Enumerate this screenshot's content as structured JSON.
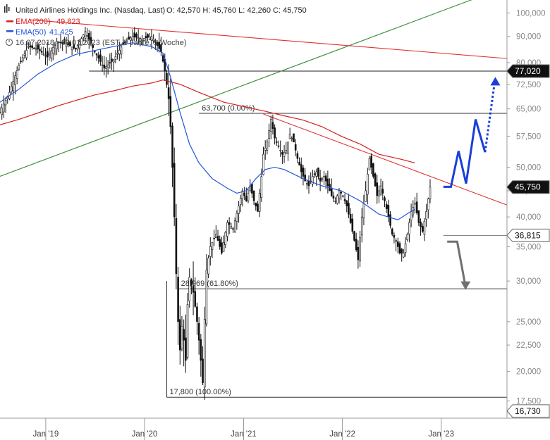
{
  "header": {
    "title": "United Airlines Holdings Inc. (Nasdaq, Last)",
    "ohlc": "O: 42,570  H: 45,760  L: 42,260  C: 45,750",
    "ema200_label": "EMA(200)",
    "ema200_value": "49,823",
    "ema50_label": "EMA(50)",
    "ema50_value": "41,425",
    "range_info": "16.07.2018 - 09.01.2023  (EST, 5 Jahre, 1 Woche)"
  },
  "colors": {
    "ema200": "#d42020",
    "ema50": "#2255dd",
    "trend_green": "#3a8a3a",
    "resistance_red": "#e03030",
    "projection_blue": "#1a3fd8",
    "projection_gray": "#707070",
    "candle": "#111111"
  },
  "chart_data": {
    "type": "candlestick",
    "y_scale": "log",
    "ylim": [
      16.2,
      106
    ],
    "xlim": [
      "2018-07-16",
      "2023-09-01"
    ],
    "y_ticks": [
      "100,000",
      "90,000",
      "80,000",
      "72,500",
      "65,000",
      "57,500",
      "50,000",
      "45,000",
      "40,000",
      "35,000",
      "30,000",
      "25,000",
      "22,500",
      "20,000",
      "17,500"
    ],
    "y_tick_values": [
      100,
      90,
      80,
      72.5,
      65,
      57.5,
      50,
      45,
      40,
      35,
      30,
      25,
      22.5,
      20,
      17.5
    ],
    "x_ticks": [
      "Jan '19",
      "Jan '20",
      "Jan '21",
      "Jan '22",
      "Jan '23"
    ],
    "x_tick_dates": [
      "2019-01-01",
      "2020-01-01",
      "2021-01-01",
      "2022-01-01",
      "2023-01-01"
    ],
    "price_badges": [
      {
        "label": "77,020",
        "value": 77.02,
        "dark": true
      },
      {
        "label": "45,750",
        "value": 45.75,
        "dark": true
      },
      {
        "label": "36,815",
        "value": 36.815,
        "dark": false
      },
      {
        "label": "16,730",
        "value": 16.73,
        "dark": false
      }
    ],
    "fib_levels": [
      {
        "label": "63,700 (0.00%)",
        "value": 63.7,
        "start": "2020-07-20"
      },
      {
        "label": "28,969 (61.80%)",
        "value": 28.969,
        "start": "2020-05-04"
      },
      {
        "label": "17,800 (100.00%)",
        "value": 17.8,
        "start": "2020-03-23"
      }
    ],
    "horizontal_lines": [
      {
        "value": 77.02,
        "start": "2019-06-10"
      },
      {
        "value": 36.815,
        "start": "2023-01-09"
      }
    ],
    "trendlines": [
      {
        "name": "support-trend",
        "color": "green",
        "from": [
          "2018-07-16",
          48.0
        ],
        "to": [
          "2023-06-01",
          108.0
        ]
      },
      {
        "name": "long-resistance",
        "color": "red",
        "from": [
          "2018-11-01",
          97.0
        ],
        "to": [
          "2023-09-01",
          81.5
        ]
      },
      {
        "name": "falling-resistance",
        "color": "red",
        "from": [
          "2021-03-15",
          63.5
        ],
        "to": [
          "2023-09-01",
          42.2
        ]
      }
    ],
    "projection_up": [
      [
        "2023-01-09",
        45.8
      ],
      [
        "2023-02-06",
        45.8
      ],
      [
        "2023-03-06",
        53.8
      ],
      [
        "2023-04-03",
        46.5
      ],
      [
        "2023-05-08",
        62.0
      ],
      [
        "2023-06-12",
        53.5
      ]
    ],
    "projection_up_dotted": [
      [
        "2023-06-12",
        53.5
      ],
      [
        "2023-07-20",
        75.0
      ]
    ],
    "projection_down": [
      [
        "2023-01-23",
        35.8
      ],
      [
        "2023-03-01",
        35.8
      ],
      [
        "2023-04-01",
        29.2
      ]
    ],
    "series": [
      {
        "name": "EMA(200)",
        "values": [
          [
            0,
            60.5
          ],
          [
            10,
            62.0
          ],
          [
            20,
            63.8
          ],
          [
            30,
            65.8
          ],
          [
            40,
            67.5
          ],
          [
            50,
            69.2
          ],
          [
            60,
            70.5
          ],
          [
            70,
            72.0
          ],
          [
            80,
            73.0
          ],
          [
            86,
            74.0
          ],
          [
            95,
            72.6
          ],
          [
            105,
            70.0
          ],
          [
            118,
            67.0
          ],
          [
            130,
            65.5
          ],
          [
            140,
            64.3
          ],
          [
            150,
            63.0
          ],
          [
            160,
            61.8
          ],
          [
            170,
            60.0
          ],
          [
            180,
            57.5
          ],
          [
            190,
            55.5
          ],
          [
            200,
            53.0
          ],
          [
            212,
            51.8
          ],
          [
            219,
            51.0
          ]
        ]
      },
      {
        "name": "EMA(50)",
        "values": [
          [
            0,
            67.0
          ],
          [
            10,
            71.0
          ],
          [
            20,
            76.0
          ],
          [
            30,
            80.0
          ],
          [
            40,
            83.0
          ],
          [
            50,
            84.5
          ],
          [
            60,
            86.0
          ],
          [
            70,
            87.5
          ],
          [
            80,
            86.0
          ],
          [
            86,
            83.5
          ],
          [
            90,
            75.0
          ],
          [
            95,
            64.0
          ],
          [
            100,
            55.5
          ],
          [
            105,
            51.0
          ],
          [
            112,
            47.5
          ],
          [
            120,
            45.5
          ],
          [
            125,
            44.5
          ],
          [
            130,
            45.0
          ],
          [
            135,
            47.5
          ],
          [
            140,
            49.5
          ],
          [
            145,
            50.0
          ],
          [
            150,
            49.5
          ],
          [
            160,
            47.5
          ],
          [
            170,
            46.0
          ],
          [
            180,
            45.0
          ],
          [
            190,
            43.0
          ],
          [
            200,
            40.5
          ],
          [
            210,
            39.5
          ],
          [
            216,
            40.8
          ],
          [
            219,
            41.4
          ]
        ]
      },
      {
        "name": "Price",
        "values": [
          [
            0,
            64
          ],
          [
            5,
            70
          ],
          [
            10,
            79
          ],
          [
            15,
            86
          ],
          [
            20,
            85
          ],
          [
            25,
            82
          ],
          [
            30,
            88
          ],
          [
            35,
            87
          ],
          [
            40,
            85
          ],
          [
            45,
            92
          ],
          [
            50,
            84
          ],
          [
            55,
            78
          ],
          [
            60,
            81
          ],
          [
            65,
            87
          ],
          [
            70,
            90
          ],
          [
            75,
            89
          ],
          [
            80,
            90
          ],
          [
            85,
            84
          ],
          [
            87,
            77
          ],
          [
            89,
            68
          ],
          [
            90,
            60
          ],
          [
            91,
            50
          ],
          [
            92,
            40
          ],
          [
            93,
            31
          ],
          [
            94,
            25
          ],
          [
            95,
            22
          ],
          [
            96,
            24.5
          ],
          [
            97,
            23
          ],
          [
            98,
            21
          ],
          [
            99,
            27
          ],
          [
            100,
            30.5
          ],
          [
            102,
            28.5
          ],
          [
            104,
            25
          ],
          [
            106,
            21
          ],
          [
            107,
            19
          ],
          [
            109,
            31.5
          ],
          [
            111,
            35
          ],
          [
            114,
            37
          ],
          [
            117,
            34
          ],
          [
            120,
            39
          ],
          [
            123,
            38
          ],
          [
            126,
            42
          ],
          [
            128,
            45
          ],
          [
            130,
            43
          ],
          [
            132,
            46
          ],
          [
            134,
            43
          ],
          [
            136,
            41
          ],
          [
            138,
            48
          ],
          [
            139,
            53
          ],
          [
            141,
            56
          ],
          [
            143,
            62
          ],
          [
            145,
            57
          ],
          [
            147,
            55
          ],
          [
            149,
            53
          ],
          [
            151,
            54
          ],
          [
            153,
            58
          ],
          [
            155,
            56
          ],
          [
            157,
            52
          ],
          [
            159,
            49
          ],
          [
            161,
            47
          ],
          [
            163,
            46
          ],
          [
            165,
            48
          ],
          [
            167,
            49
          ],
          [
            169,
            47
          ],
          [
            171,
            48
          ],
          [
            173,
            46
          ],
          [
            175,
            44
          ],
          [
            177,
            43
          ],
          [
            179,
            45
          ],
          [
            181,
            44
          ],
          [
            183,
            42
          ],
          [
            185,
            39
          ],
          [
            187,
            36
          ],
          [
            189,
            33
          ],
          [
            191,
            40
          ],
          [
            193,
            45
          ],
          [
            195,
            52
          ],
          [
            197,
            48
          ],
          [
            199,
            44
          ],
          [
            201,
            46
          ],
          [
            203,
            43
          ],
          [
            205,
            40
          ],
          [
            207,
            37
          ],
          [
            209,
            36
          ],
          [
            211,
            34
          ],
          [
            213,
            34
          ],
          [
            215,
            37
          ],
          [
            217,
            41
          ],
          [
            219,
            42.5
          ],
          [
            221,
            39
          ],
          [
            223,
            37.5
          ],
          [
            225,
            41
          ],
          [
            227,
            45.75
          ]
        ]
      }
    ],
    "date_start": "2018-07-16"
  }
}
